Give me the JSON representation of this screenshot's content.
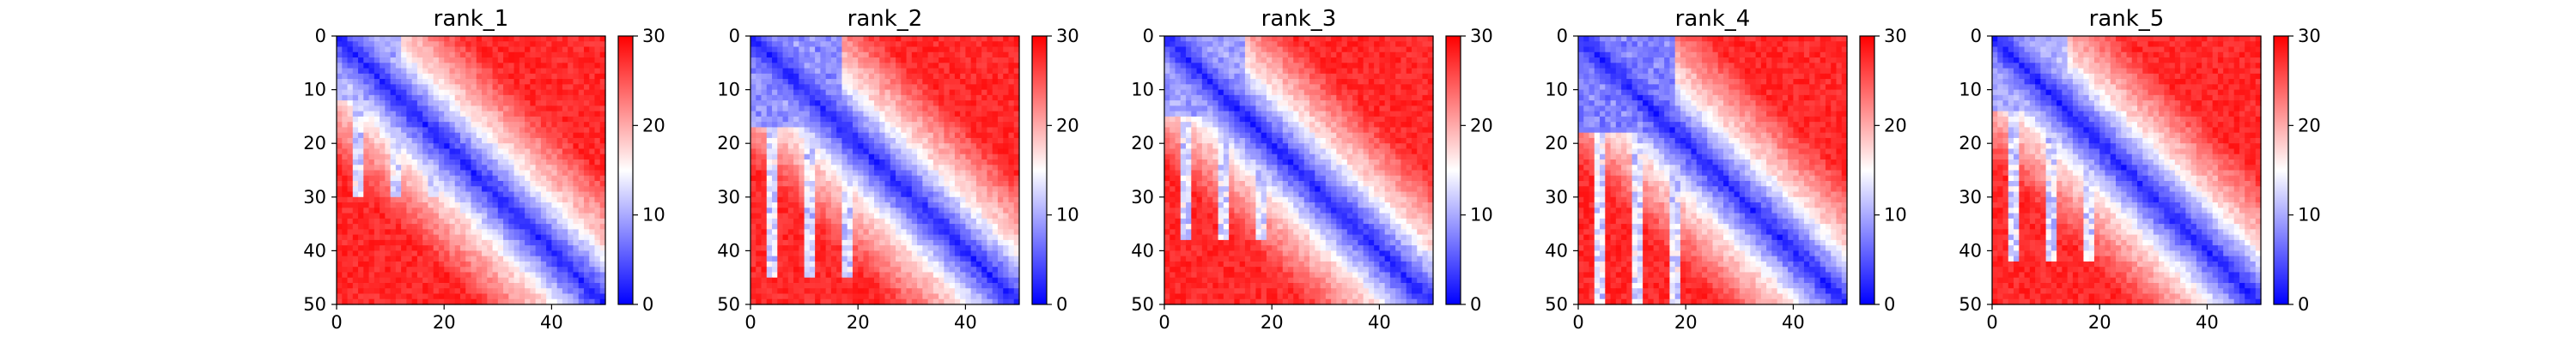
{
  "chart_data": [
    {
      "type": "heatmap",
      "title": "rank_1",
      "x_ticks": [
        0,
        20,
        40
      ],
      "y_ticks": [
        0,
        10,
        20,
        30,
        40,
        50
      ],
      "xlim": [
        0,
        50
      ],
      "ylim": [
        50,
        0
      ],
      "grid_size": 50,
      "colormap": "bwr",
      "color_range": [
        0,
        30
      ],
      "colorbar_ticks": [
        0,
        10,
        20,
        30
      ]
    },
    {
      "type": "heatmap",
      "title": "rank_2",
      "x_ticks": [
        0,
        20,
        40
      ],
      "y_ticks": [
        0,
        10,
        20,
        30,
        40,
        50
      ],
      "xlim": [
        0,
        50
      ],
      "ylim": [
        50,
        0
      ],
      "grid_size": 50,
      "colormap": "bwr",
      "color_range": [
        0,
        30
      ],
      "colorbar_ticks": [
        0,
        10,
        20,
        30
      ]
    },
    {
      "type": "heatmap",
      "title": "rank_3",
      "x_ticks": [
        0,
        20,
        40
      ],
      "y_ticks": [
        0,
        10,
        20,
        30,
        40,
        50
      ],
      "xlim": [
        0,
        50
      ],
      "ylim": [
        50,
        0
      ],
      "grid_size": 50,
      "colormap": "bwr",
      "color_range": [
        0,
        30
      ],
      "colorbar_ticks": [
        0,
        10,
        20,
        30
      ]
    },
    {
      "type": "heatmap",
      "title": "rank_4",
      "x_ticks": [
        0,
        20,
        40
      ],
      "y_ticks": [
        0,
        10,
        20,
        30,
        40,
        50
      ],
      "xlim": [
        0,
        50
      ],
      "ylim": [
        50,
        0
      ],
      "grid_size": 50,
      "colormap": "bwr",
      "color_range": [
        0,
        30
      ],
      "colorbar_ticks": [
        0,
        10,
        20,
        30
      ]
    },
    {
      "type": "heatmap",
      "title": "rank_5",
      "x_ticks": [
        0,
        20,
        40
      ],
      "y_ticks": [
        0,
        10,
        20,
        30,
        40,
        50
      ],
      "xlim": [
        0,
        50
      ],
      "ylim": [
        50,
        0
      ],
      "grid_size": 50,
      "colormap": "bwr",
      "color_range": [
        0,
        30
      ],
      "colorbar_ticks": [
        0,
        10,
        20,
        30
      ]
    }
  ]
}
